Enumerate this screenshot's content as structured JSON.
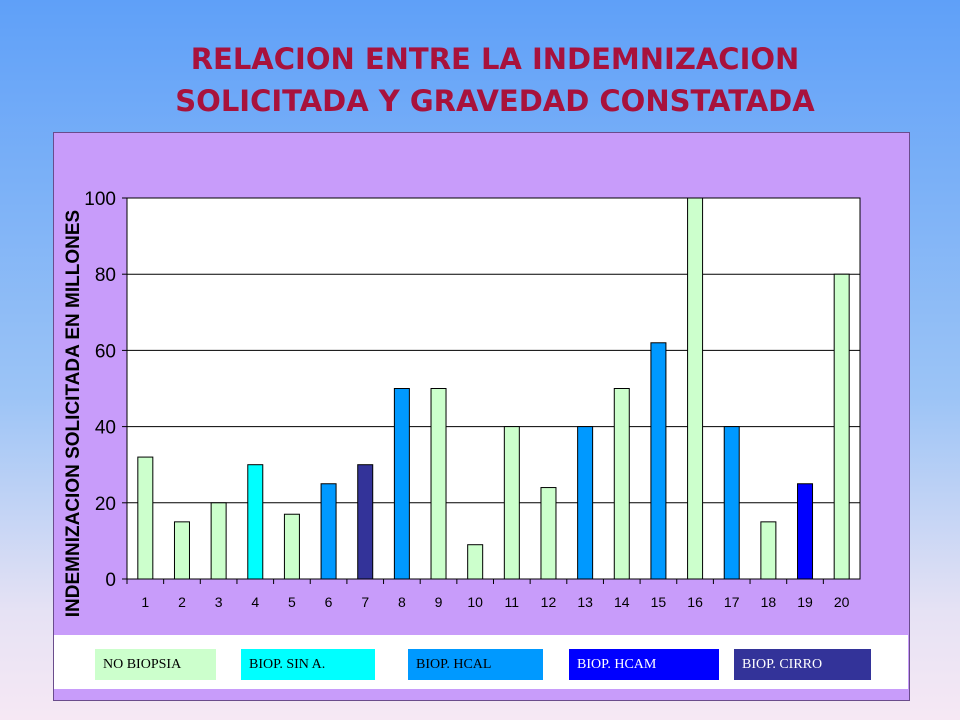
{
  "title_lines": [
    "RELACION ENTRE LA INDEMNIZACION",
    "SOLICITADA Y GRAVEDAD CONSTATADA"
  ],
  "colors": {
    "title": "#a8123c",
    "plot_area": "#c89cfa",
    "no_biopsia": "#ccffcc",
    "biop_sin_a": "#00ffff",
    "biop_hcal": "#0099ff",
    "biop_hcam": "#0000ff",
    "biop_cirro": "#333399"
  },
  "chart_data": {
    "type": "bar",
    "ylabel": "INDEMNIZACION SOLICITADA EN MILLONES",
    "xlabel": "",
    "ylim": [
      0,
      100
    ],
    "yticks": [
      0,
      20,
      40,
      60,
      80,
      100
    ],
    "grid": true,
    "categories": [
      "1",
      "2",
      "3",
      "4",
      "5",
      "6",
      "7",
      "8",
      "9",
      "10",
      "11",
      "12",
      "13",
      "14",
      "15",
      "16",
      "17",
      "18",
      "19",
      "20"
    ],
    "values": [
      32,
      15,
      20,
      30,
      17,
      25,
      30,
      50,
      50,
      9,
      40,
      24,
      40,
      50,
      62,
      100,
      40,
      15,
      25,
      80
    ],
    "groups": [
      "no_biopsia",
      "no_biopsia",
      "no_biopsia",
      "biop_sin_a",
      "no_biopsia",
      "biop_hcal",
      "biop_cirro",
      "biop_hcal",
      "no_biopsia",
      "no_biopsia",
      "no_biopsia",
      "no_biopsia",
      "biop_hcal",
      "no_biopsia",
      "biop_hcal",
      "no_biopsia",
      "biop_hcal",
      "no_biopsia",
      "biop_hcam",
      "no_biopsia"
    ],
    "legend": [
      {
        "key": "no_biopsia",
        "label": "NO BIOPSIA"
      },
      {
        "key": "biop_sin_a",
        "label": "BIOP.  SIN A."
      },
      {
        "key": "biop_hcal",
        "label": "BIOP.  HCAL"
      },
      {
        "key": "biop_hcam",
        "label": "BIOP.  HCAM"
      },
      {
        "key": "biop_cirro",
        "label": "BIOP. CIRRO"
      }
    ],
    "legend_position": "bottom"
  }
}
